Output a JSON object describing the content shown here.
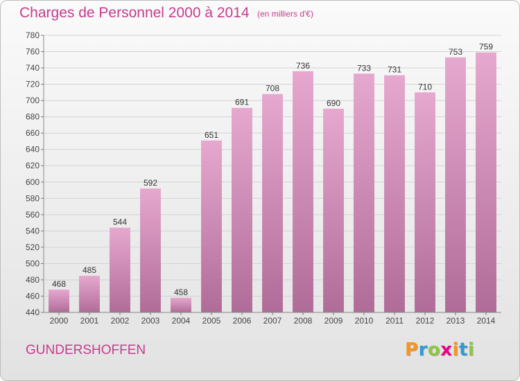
{
  "header": {
    "title": "Charges de Personnel 2000 à 2014",
    "subtitle": "(en milliers d'€)"
  },
  "footer": {
    "commune": "GUNDERSHOFFEN",
    "logo_text": "Proxiti",
    "logo_colors": [
      "#f7941d",
      "#2e9bd6",
      "#8dc63f",
      "#ec008c",
      "#f7941d",
      "#2e9bd6",
      "#8dc63f"
    ]
  },
  "chart_data": {
    "type": "bar",
    "title": "Charges de Personnel 2000 à 2014",
    "subtitle": "(en milliers d'€)",
    "categories": [
      "2000",
      "2001",
      "2002",
      "2003",
      "2004",
      "2005",
      "2006",
      "2007",
      "2008",
      "2009",
      "2010",
      "2011",
      "2012",
      "2013",
      "2014"
    ],
    "values": [
      468,
      485,
      544,
      592,
      458,
      651,
      691,
      708,
      736,
      690,
      733,
      731,
      710,
      753,
      759
    ],
    "ylim": [
      440,
      780
    ],
    "yticks": [
      440,
      460,
      480,
      500,
      520,
      540,
      560,
      580,
      600,
      620,
      640,
      660,
      680,
      700,
      720,
      740,
      760,
      780
    ],
    "grid": true,
    "bar_color_top": "#e6a8cf",
    "bar_color_bottom": "#b06c98",
    "xlabel": "",
    "ylabel": ""
  }
}
